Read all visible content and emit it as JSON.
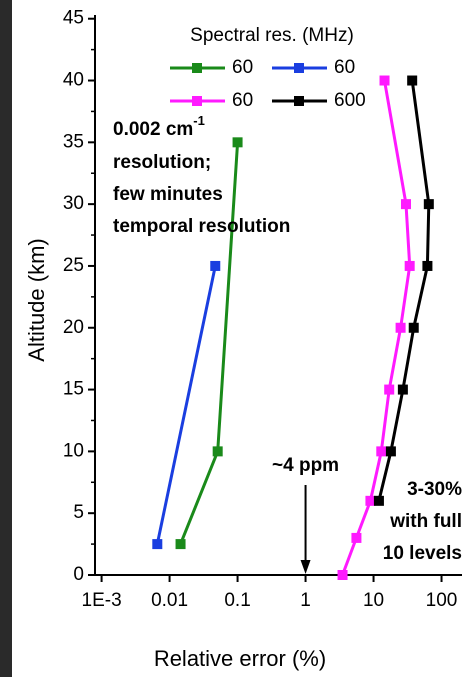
{
  "chart_data": {
    "type": "line",
    "x_label": "Relative error (%)",
    "y_label": "Altitude (km)",
    "log_x": true,
    "xlim": [
      0.0008,
      200
    ],
    "xticks": [
      {
        "value": 0.001,
        "label": "1E-3"
      },
      0.01,
      0.1,
      1,
      10,
      100
    ],
    "ylim": [
      0,
      45.3
    ],
    "yticks": [
      0,
      5,
      10,
      15,
      20,
      25,
      30,
      35,
      40,
      45
    ],
    "legend_title": "Spectral res. (MHz)",
    "series": [
      {
        "name": "60",
        "color": "#1a8a1a",
        "x": [
          0.0145,
          0.051,
          0.1
        ],
        "y": [
          2.5,
          10,
          35
        ]
      },
      {
        "name": "60",
        "color": "#1a3ee0",
        "x": [
          0.0066,
          0.047
        ],
        "y": [
          2.5,
          25
        ]
      },
      {
        "name": "60",
        "color": "#ff1aff",
        "x": [
          3.5,
          5.6,
          9,
          13,
          17,
          25,
          34,
          30,
          14.5
        ],
        "y": [
          0,
          3,
          6,
          10,
          15,
          20,
          25,
          30,
          40
        ]
      },
      {
        "name": "600",
        "color": "#000000",
        "x": [
          12,
          18,
          27,
          39,
          62,
          65,
          37
        ],
        "y": [
          6,
          10,
          15,
          20,
          25,
          30,
          40
        ]
      }
    ],
    "resolution_note": {
      "prefix": "0.002 cm",
      "superscript": "-1",
      "lines": [
        "resolution;",
        "few minutes",
        "temporal resolution"
      ]
    },
    "arrow_note": {
      "text": "~4 ppm",
      "x": 1
    },
    "range_note": [
      "3-30%",
      "with full",
      "10 levels"
    ]
  }
}
